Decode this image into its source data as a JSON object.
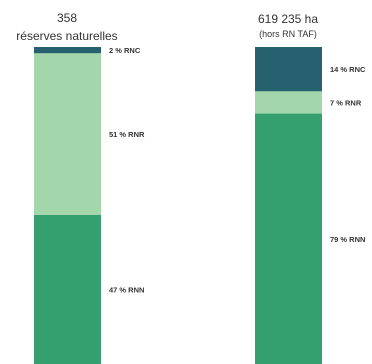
{
  "chart_data": {
    "type": "bar",
    "stacked": true,
    "normalized": true,
    "unit": "%",
    "bars": [
      {
        "title_lines": [
          "358",
          "réserves naturelles"
        ],
        "segments": [
          {
            "label": "2 % RNC",
            "value": 2,
            "color": "#27606e"
          },
          {
            "label": "51 % RNR",
            "value": 51,
            "color": "#a3d6ab"
          },
          {
            "label": "47 % RNN",
            "value": 47,
            "color": "#35a06f"
          }
        ]
      },
      {
        "title_lines": [
          "619 235 ha",
          "(hors RN TAF)"
        ],
        "segments": [
          {
            "label": "14 % RNC",
            "value": 14,
            "color": "#27606e"
          },
          {
            "label": "7 % RNR",
            "value": 7,
            "color": "#a3d6ab"
          },
          {
            "label": "79 % RNN",
            "value": 79,
            "color": "#35a06f"
          }
        ]
      }
    ]
  }
}
